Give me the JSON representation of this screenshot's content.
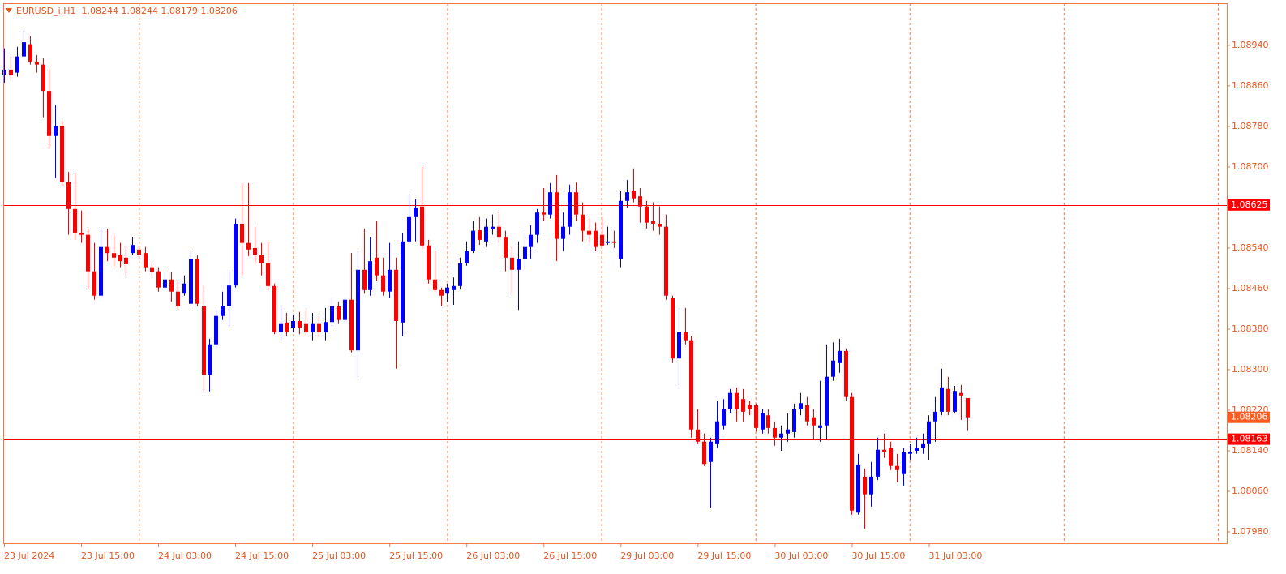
{
  "chart_data": {
    "type": "candlestick",
    "title": "EURUSD_i,H1  1.08244 1.08244 1.08179 1.08206",
    "up_color": "#0000ff",
    "down_color": "#ff0000",
    "period_separators": true,
    "categories": [
      "23 Jul 2024",
      null,
      null,
      null,
      null,
      null,
      null,
      null,
      null,
      null,
      null,
      null,
      "23 Jul 15:00",
      null,
      null,
      null,
      null,
      null,
      null,
      null,
      null,
      null,
      null,
      null,
      "24 Jul 03:00",
      null,
      null,
      null,
      null,
      null,
      null,
      null,
      null,
      null,
      null,
      null,
      "24 Jul 15:00",
      null,
      null,
      null,
      null,
      null,
      null,
      null,
      null,
      null,
      null,
      null,
      "25 Jul 03:00",
      null,
      null,
      null,
      null,
      null,
      null,
      null,
      null,
      null,
      null,
      null,
      "25 Jul 15:00",
      null,
      null,
      null,
      null,
      null,
      null,
      null,
      null,
      null,
      null,
      null,
      "26 Jul 03:00",
      null,
      null,
      null,
      null,
      null,
      null,
      null,
      null,
      null,
      null,
      null,
      "26 Jul 15:00",
      null,
      null,
      null,
      null,
      null,
      null,
      null,
      null,
      null,
      null,
      null,
      "29 Jul 03:00",
      null,
      null,
      null,
      null,
      null,
      null,
      null,
      null,
      null,
      null,
      null,
      "29 Jul 15:00",
      null,
      null,
      null,
      null,
      null,
      null,
      null,
      null,
      null,
      null,
      null,
      "30 Jul 03:00",
      null,
      null,
      null,
      null,
      null,
      null,
      null,
      null,
      null,
      null,
      null,
      "30 Jul 15:00",
      null,
      null,
      null,
      null,
      null,
      null,
      null,
      null,
      null,
      null,
      null,
      "31 Jul 03:00",
      null,
      null,
      null,
      null,
      null,
      null
    ],
    "open": [
      1.08882,
      1.08892,
      1.08886,
      1.08918,
      1.08942,
      1.08908,
      1.08902,
      1.0885,
      1.08761,
      1.0878,
      1.0867,
      1.08617,
      1.08569,
      1.08566,
      1.08494,
      1.08446,
      1.08542,
      1.0853,
      1.08526,
      1.08521,
      1.0853,
      1.08537,
      1.0853,
      1.08502,
      1.08494,
      1.08462,
      1.08478,
      1.08454,
      1.0845,
      1.0843,
      1.08518,
      1.08425,
      1.0829,
      1.0835,
      1.08406,
      1.08426,
      1.08466,
      1.08588,
      1.0855,
      1.0854,
      1.08527,
      1.08511,
      1.08465,
      1.08374,
      1.08393,
      1.08383,
      1.08396,
      1.0839,
      1.08374,
      1.0839,
      1.08374,
      1.08394,
      1.08425,
      1.08398,
      1.08438,
      1.08338,
      1.08497,
      1.08457,
      1.08521,
      1.08486,
      1.08454,
      1.08497,
      1.08393,
      1.08553,
      1.08601,
      1.08622,
      1.08545,
      1.08478,
      1.08457,
      1.0845,
      1.08457,
      1.08465,
      1.0851,
      1.08534,
      1.08575,
      1.08553,
      1.08577,
      1.08582,
      1.08562,
      1.08521,
      1.08497,
      1.08518,
      1.08542,
      1.08566,
      1.0861,
      1.08606,
      1.0865,
      1.08558,
      1.08582,
      1.0865,
      1.08606,
      1.08574,
      1.08574,
      1.08566,
      1.0855,
      1.08553,
      1.08518,
      1.08633,
      1.08652,
      1.08642,
      1.08622,
      1.08594,
      1.08588,
      1.08582,
      1.08441,
      1.08322,
      1.08374,
      1.08358,
      1.08182,
      1.08158,
      1.08118,
      1.08153,
      1.0819,
      1.08222,
      1.08254,
      1.08242,
      1.0823,
      1.0823,
      1.08182,
      1.0821,
      1.08185,
      1.08166,
      1.08174,
      1.08177,
      1.08222,
      1.0823,
      1.08206,
      1.08185,
      1.0819,
      1.08286,
      1.08313,
      1.08337,
      1.08246,
      1.08018,
      1.08089,
      1.08054,
      1.08089,
      1.08142,
      1.08145,
      1.0811,
      1.08094,
      1.08134,
      1.0814,
      1.08146,
      1.08153,
      1.08198,
      1.08217,
      1.08262,
      1.08217,
      1.08254,
      1.08244
    ],
    "high": [
      1.08934,
      1.08918,
      1.08937,
      1.08969,
      1.08958,
      1.08921,
      1.08914,
      1.08894,
      1.08822,
      1.0879,
      1.0869,
      1.08687,
      1.08614,
      1.08578,
      1.0855,
      1.08578,
      1.08578,
      1.08566,
      1.0855,
      1.08542,
      1.08562,
      1.08543,
      1.08542,
      1.0851,
      1.08502,
      1.08494,
      1.08492,
      1.08478,
      1.08486,
      1.08534,
      1.08526,
      1.08466,
      1.08361,
      1.08418,
      1.08454,
      1.08494,
      1.08598,
      1.08668,
      1.08668,
      1.08582,
      1.0855,
      1.08553,
      1.0847,
      1.08425,
      1.08412,
      1.08409,
      1.08414,
      1.08418,
      1.08412,
      1.08406,
      1.08422,
      1.08441,
      1.08434,
      1.08441,
      1.0853,
      1.08534,
      1.08578,
      1.08562,
      1.08594,
      1.08521,
      1.0855,
      1.08521,
      1.08569,
      1.08646,
      1.08636,
      1.087,
      1.08556,
      1.08534,
      1.08462,
      1.0847,
      1.08482,
      1.08521,
      1.08553,
      1.08594,
      1.08601,
      1.08598,
      1.08606,
      1.0861,
      1.08574,
      1.08542,
      1.08553,
      1.08569,
      1.08585,
      1.08617,
      1.08658,
      1.08668,
      1.08684,
      1.0861,
      1.08665,
      1.0867,
      1.0863,
      1.08598,
      1.0859,
      1.08601,
      1.08582,
      1.08574,
      1.08652,
      1.08674,
      1.08697,
      1.08658,
      1.08633,
      1.0863,
      1.08622,
      1.08606,
      1.08446,
      1.08422,
      1.08422,
      1.08366,
      1.08222,
      1.08174,
      1.08166,
      1.08238,
      1.08242,
      1.08262,
      1.08265,
      1.08262,
      1.08238,
      1.08233,
      1.08222,
      1.08222,
      1.08198,
      1.0819,
      1.08214,
      1.08233,
      1.08254,
      1.08246,
      1.08222,
      1.08278,
      1.0835,
      1.08354,
      1.08361,
      1.08342,
      1.08254,
      1.08134,
      1.08105,
      1.08118,
      1.08166,
      1.08174,
      1.08158,
      1.08134,
      1.08146,
      1.08153,
      1.08166,
      1.08174,
      1.0821,
      1.08246,
      1.08302,
      1.08286,
      1.08268,
      1.0827,
      1.08244
    ],
    "low": [
      1.08866,
      1.08873,
      1.08878,
      1.08914,
      1.08902,
      1.08886,
      1.08798,
      1.08738,
      1.08678,
      1.08662,
      1.08566,
      1.08556,
      1.0855,
      1.0846,
      1.08438,
      1.08441,
      1.08514,
      1.08502,
      1.08502,
      1.08486,
      1.08526,
      1.08521,
      1.08494,
      1.08486,
      1.08454,
      1.08457,
      1.08434,
      1.08418,
      1.08446,
      1.08425,
      1.08425,
      1.08257,
      1.08257,
      1.08342,
      1.08398,
      1.08386,
      1.08462,
      1.08486,
      1.08524,
      1.0851,
      1.08486,
      1.08457,
      1.0837,
      1.08358,
      1.08367,
      1.08374,
      1.0837,
      1.08367,
      1.08358,
      1.08364,
      1.08358,
      1.08386,
      1.0839,
      1.0839,
      1.08334,
      1.08282,
      1.0845,
      1.08446,
      1.08476,
      1.08446,
      1.08441,
      1.08302,
      1.08366,
      1.0855,
      1.08553,
      1.08537,
      1.0847,
      1.08454,
      1.08425,
      1.08434,
      1.08428,
      1.08458,
      1.08505,
      1.0853,
      1.08546,
      1.08542,
      1.08566,
      1.0855,
      1.08494,
      1.0845,
      1.08418,
      1.08502,
      1.08518,
      1.0855,
      1.08594,
      1.08598,
      1.08514,
      1.08534,
      1.08566,
      1.08594,
      1.08553,
      1.0855,
      1.08534,
      1.08542,
      1.08546,
      1.0854,
      1.08502,
      1.0862,
      1.0863,
      1.0859,
      1.08578,
      1.08574,
      1.08566,
      1.08438,
      1.08313,
      1.08265,
      1.0835,
      1.08166,
      1.08153,
      1.0811,
      1.08028,
      1.08146,
      1.08182,
      1.08214,
      1.08198,
      1.08198,
      1.0821,
      1.08178,
      1.08174,
      1.08174,
      1.0815,
      1.0814,
      1.08158,
      1.08166,
      1.0821,
      1.0819,
      1.08162,
      1.08158,
      1.08162,
      1.08278,
      1.08294,
      1.08238,
      1.08014,
      1.08014,
      1.07986,
      1.0803,
      1.08082,
      1.08126,
      1.08102,
      1.08078,
      1.0807,
      1.08121,
      1.08134,
      1.08134,
      1.08121,
      1.08158,
      1.0821,
      1.0821,
      1.08214,
      1.08201,
      1.08179
    ],
    "close": [
      1.08892,
      1.08882,
      1.08918,
      1.08946,
      1.08908,
      1.08902,
      1.0885,
      1.08761,
      1.0878,
      1.0867,
      1.08617,
      1.08569,
      1.08566,
      1.08494,
      1.08446,
      1.08542,
      1.0853,
      1.08521,
      1.08514,
      1.08508,
      1.08546,
      1.08527,
      1.08502,
      1.08492,
      1.08462,
      1.08478,
      1.08454,
      1.08425,
      1.0847,
      1.08518,
      1.0843,
      1.0829,
      1.0835,
      1.08406,
      1.08426,
      1.08466,
      1.08588,
      1.0855,
      1.08537,
      1.08527,
      1.08511,
      1.08465,
      1.08374,
      1.0839,
      1.08374,
      1.08396,
      1.08383,
      1.08374,
      1.0839,
      1.08374,
      1.08394,
      1.08425,
      1.08398,
      1.08438,
      1.08338,
      1.08497,
      1.08457,
      1.08514,
      1.08486,
      1.08454,
      1.08497,
      1.08396,
      1.08553,
      1.08601,
      1.0862,
      1.08545,
      1.08478,
      1.08457,
      1.08446,
      1.08462,
      1.08465,
      1.0851,
      1.08534,
      1.08574,
      1.08556,
      1.08582,
      1.08582,
      1.08562,
      1.08521,
      1.08497,
      1.08518,
      1.08542,
      1.08566,
      1.0861,
      1.08606,
      1.0865,
      1.08558,
      1.08582,
      1.0865,
      1.08606,
      1.08574,
      1.08566,
      1.08542,
      1.08545,
      1.08553,
      1.0855,
      1.08633,
      1.0865,
      1.08638,
      1.08622,
      1.0859,
      1.08588,
      1.08582,
      1.08446,
      1.08322,
      1.08374,
      1.08358,
      1.08182,
      1.08158,
      1.08114,
      1.08158,
      1.08198,
      1.08222,
      1.08254,
      1.08222,
      1.08217,
      1.08222,
      1.08185,
      1.08214,
      1.08185,
      1.08166,
      1.08174,
      1.08182,
      1.08222,
      1.08234,
      1.08198,
      1.0819,
      1.0819,
      1.08286,
      1.08318,
      1.08337,
      1.08246,
      1.08022,
      1.08113,
      1.08054,
      1.08089,
      1.08142,
      1.08137,
      1.0811,
      1.08102,
      1.08137,
      1.08137,
      1.08146,
      1.08153,
      1.08198,
      1.08217,
      1.08265,
      1.08217,
      1.08258,
      1.08249,
      1.08206
    ],
    "ylim": [
      1.07956,
      1.09023
    ],
    "yticks": [
      {
        "value": 1.0894,
        "label": "1.08940"
      },
      {
        "value": 1.0886,
        "label": "1.08860"
      },
      {
        "value": 1.0878,
        "label": "1.08780"
      },
      {
        "value": 1.087,
        "label": "1.08700"
      },
      {
        "value": 1.0854,
        "label": "1.08540"
      },
      {
        "value": 1.0846,
        "label": "1.08460"
      },
      {
        "value": 1.0838,
        "label": "1.08380"
      },
      {
        "value": 1.083,
        "label": "1.08300"
      },
      {
        "value": 1.0822,
        "label": "1.08220"
      },
      {
        "value": 1.0814,
        "label": "1.08140"
      },
      {
        "value": 1.0806,
        "label": "1.08060"
      },
      {
        "value": 1.0798,
        "label": "1.07980"
      }
    ],
    "levels": [
      {
        "value": 1.08625,
        "label": "1.08625"
      },
      {
        "value": 1.08163,
        "label": "1.08163"
      }
    ],
    "level_color": "#ff0000",
    "price_tag": {
      "value": 1.08206,
      "label": "1.08206"
    },
    "price_tag_color": "#ff5a1f"
  }
}
